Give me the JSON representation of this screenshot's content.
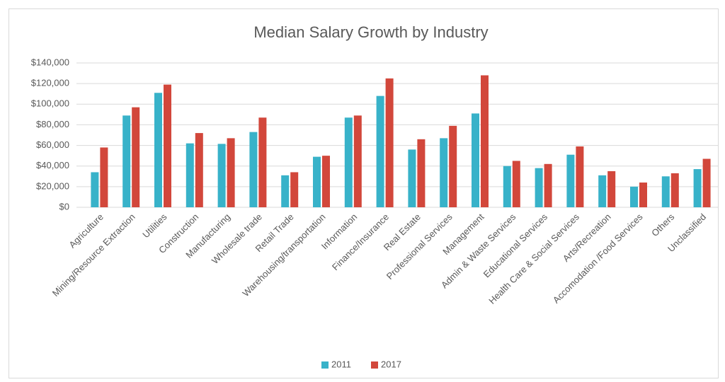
{
  "chart_data": {
    "type": "bar",
    "title": "Median Salary Growth by Industry",
    "categories": [
      "Agriculture",
      "Mining/Resource Extraction",
      "Utilities",
      "Construction",
      "Manufacturing",
      "Wholesale trade",
      "Retail Trade",
      "Warehousing/transportation",
      "Information",
      "Finance/Insurance",
      "Real Estate",
      "Professional Services",
      "Management",
      "Admin & Waste Services",
      "Educational Services",
      "Health Care & Social Services",
      "Arts/Recreation",
      "Accomodation /Food Services",
      "Others",
      "Unclassified"
    ],
    "series": [
      {
        "name": "2011",
        "color": "#38b2c9",
        "values": [
          34000,
          89000,
          111000,
          62000,
          61500,
          73000,
          31000,
          49000,
          87000,
          108000,
          56000,
          67000,
          91000,
          40000,
          38000,
          51000,
          31000,
          20000,
          30000,
          37000
        ]
      },
      {
        "name": "2017",
        "color": "#d2473b",
        "values": [
          58000,
          97000,
          119000,
          72000,
          67000,
          87000,
          34000,
          50000,
          89000,
          125000,
          66000,
          79000,
          128000,
          45000,
          42000,
          59000,
          35000,
          24000,
          33000,
          47000
        ]
      }
    ],
    "ylim": [
      0,
      140000
    ],
    "yticks": [
      {
        "value": 0,
        "label": "$0"
      },
      {
        "value": 20000,
        "label": "$20,000"
      },
      {
        "value": 40000,
        "label": "$40,000"
      },
      {
        "value": 60000,
        "label": "$60,000"
      },
      {
        "value": 80000,
        "label": "$80,000"
      },
      {
        "value": 100000,
        "label": "$100,000"
      },
      {
        "value": 120000,
        "label": "$120,000"
      },
      {
        "value": 140000,
        "label": "$140,000"
      }
    ],
    "grid": true,
    "legend": "bottom"
  }
}
